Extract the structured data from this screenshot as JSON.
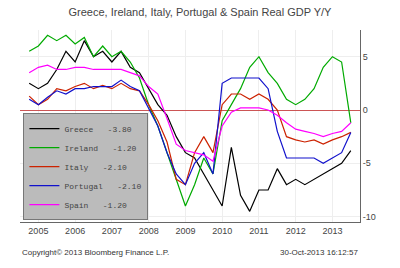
{
  "chart_data": {
    "type": "line",
    "title": "Greece, Ireland, Italy, Portugal & Spain Real GDP Y/Y",
    "annotations": [
      "Copyright© 2013 Bloomberg Finance L.P.",
      "30-Oct-2013 16:12:57"
    ],
    "x": [
      2004.75,
      2005.0,
      2005.25,
      2005.5,
      2005.75,
      2006.0,
      2006.25,
      2006.5,
      2006.75,
      2007.0,
      2007.25,
      2007.5,
      2007.75,
      2008.0,
      2008.25,
      2008.5,
      2008.75,
      2009.0,
      2009.25,
      2009.5,
      2009.75,
      2010.0,
      2010.25,
      2010.5,
      2010.75,
      2011.0,
      2011.25,
      2011.5,
      2011.75,
      2012.0,
      2012.25,
      2012.5,
      2012.75,
      2013.0,
      2013.25,
      2013.5
    ],
    "series": [
      {
        "name": "Greece   -3.80",
        "color": "#000000",
        "values": [
          2.5,
          2.0,
          2.5,
          3.8,
          5.5,
          4.5,
          6.5,
          5.0,
          5.5,
          4.5,
          5.5,
          4.0,
          3.5,
          2.0,
          0.5,
          -0.5,
          -2.5,
          -4.0,
          -4.5,
          -6.0,
          -7.5,
          -9.0,
          -3.5,
          -8.0,
          -9.5,
          -7.5,
          -7.5,
          -5.5,
          -7.0,
          -6.5,
          -7.0,
          -6.5,
          -6.0,
          -5.5,
          -5.0,
          -3.8
        ]
      },
      {
        "name": "Ireland   -1.20",
        "color": "#00aa00",
        "values": [
          5.5,
          6.0,
          7.0,
          6.5,
          7.0,
          6.2,
          6.8,
          5.0,
          6.0,
          5.0,
          5.5,
          4.5,
          3.0,
          0.5,
          -1.5,
          -4.0,
          -6.5,
          -9.0,
          -7.0,
          -4.5,
          -6.0,
          -1.0,
          0.5,
          2.0,
          4.0,
          5.0,
          3.5,
          2.5,
          1.0,
          0.5,
          1.0,
          2.0,
          4.0,
          5.0,
          4.5,
          -1.2
        ]
      },
      {
        "name": "Italy   -2.10",
        "color": "#cc2200",
        "values": [
          1.3,
          0.5,
          1.0,
          2.0,
          1.8,
          2.2,
          2.5,
          2.0,
          2.3,
          2.0,
          2.5,
          2.0,
          1.8,
          0.5,
          -1.0,
          -3.0,
          -6.5,
          -7.0,
          -4.0,
          -2.5,
          -4.0,
          0.5,
          1.5,
          1.5,
          1.0,
          1.5,
          1.0,
          0.0,
          -2.5,
          -2.8,
          -3.0,
          -2.8,
          -3.2,
          -2.8,
          -2.5,
          -2.1
        ]
      },
      {
        "name": "Portugal   -2.10",
        "color": "#1111cc",
        "values": [
          1.0,
          0.5,
          1.2,
          1.8,
          1.5,
          2.0,
          2.0,
          2.2,
          2.2,
          2.2,
          2.8,
          2.2,
          1.8,
          0.2,
          -1.5,
          -4.0,
          -6.0,
          -7.0,
          -5.0,
          -4.0,
          -6.0,
          2.5,
          3.0,
          3.0,
          3.0,
          3.0,
          2.0,
          -2.0,
          -4.5,
          -4.5,
          -4.5,
          -4.5,
          -5.0,
          -4.5,
          -4.0,
          -2.1
        ]
      },
      {
        "name": "Spain   -1.20",
        "color": "#ff00ff",
        "values": [
          3.5,
          4.0,
          4.2,
          3.8,
          3.8,
          4.0,
          4.0,
          3.8,
          3.8,
          3.8,
          3.8,
          3.5,
          3.2,
          2.2,
          1.5,
          -0.8,
          -3.2,
          -3.8,
          -4.0,
          -4.2,
          -4.8,
          -1.5,
          -0.2,
          0.2,
          0.2,
          0.2,
          0.0,
          -0.5,
          -1.2,
          -1.8,
          -2.0,
          -2.2,
          -2.5,
          -2.2,
          -2.0,
          -1.2
        ]
      }
    ],
    "xlim": [
      2004.5,
      2013.75
    ],
    "xticks": [
      2005,
      2006,
      2007,
      2008,
      2009,
      2010,
      2011,
      2012,
      2013
    ],
    "ylim": [
      -10.5,
      7.5
    ],
    "yticks": [
      -10,
      -5,
      0,
      5
    ],
    "grid": true,
    "legend": "lower left"
  }
}
